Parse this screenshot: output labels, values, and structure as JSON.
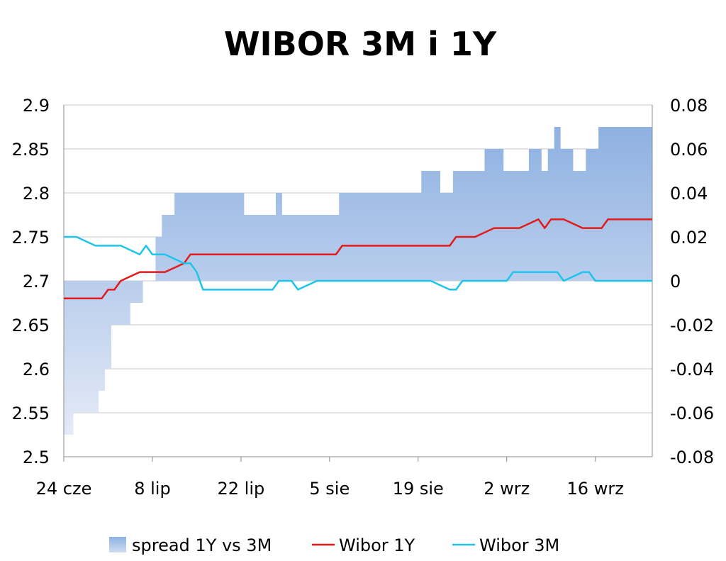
{
  "chart_data": {
    "type": "line",
    "title": "WIBOR 3M i 1Y",
    "x_tick_labels": [
      "24 cze",
      "8 lip",
      "22 lip",
      "5 sie",
      "19 sie",
      "2 wrz",
      "16 wrz"
    ],
    "x_range": [
      "2009-06-24",
      "2009-09-25"
    ],
    "y_left": {
      "ylim": [
        2.5,
        2.9
      ],
      "ticks": [
        "2.5",
        "2.55",
        "2.6",
        "2.65",
        "2.7",
        "2.75",
        "2.8",
        "2.85",
        "2.9"
      ]
    },
    "y_right": {
      "ylim": [
        -0.08,
        0.08
      ],
      "ticks": [
        "-0.08",
        "-0.06",
        "-0.04",
        "-0.02",
        "0",
        "0.02",
        "0.04",
        "0.06",
        "0.08"
      ]
    },
    "grid": true,
    "legend_position": "bottom",
    "x": [
      "2009-06-24",
      "2009-06-25",
      "2009-06-26",
      "2009-06-29",
      "2009-06-30",
      "2009-07-01",
      "2009-07-02",
      "2009-07-03",
      "2009-07-06",
      "2009-07-07",
      "2009-07-08",
      "2009-07-09",
      "2009-07-10",
      "2009-07-13",
      "2009-07-14",
      "2009-07-15",
      "2009-07-16",
      "2009-07-17",
      "2009-07-20",
      "2009-07-21",
      "2009-07-22",
      "2009-07-23",
      "2009-07-24",
      "2009-07-27",
      "2009-07-28",
      "2009-07-29",
      "2009-07-30",
      "2009-07-31",
      "2009-08-03",
      "2009-08-04",
      "2009-08-05",
      "2009-08-06",
      "2009-08-07",
      "2009-08-10",
      "2009-08-11",
      "2009-08-12",
      "2009-08-13",
      "2009-08-14",
      "2009-08-17",
      "2009-08-18",
      "2009-08-19",
      "2009-08-20",
      "2009-08-21",
      "2009-08-24",
      "2009-08-25",
      "2009-08-26",
      "2009-08-27",
      "2009-08-28",
      "2009-08-31",
      "2009-09-01",
      "2009-09-02",
      "2009-09-03",
      "2009-09-04",
      "2009-09-07",
      "2009-09-08",
      "2009-09-09",
      "2009-09-10",
      "2009-09-11",
      "2009-09-14",
      "2009-09-15",
      "2009-09-16",
      "2009-09-17",
      "2009-09-18",
      "2009-09-21",
      "2009-09-22",
      "2009-09-23",
      "2009-09-24",
      "2009-09-25"
    ],
    "series": [
      {
        "name": "spread 1Y vs 3M",
        "type": "area",
        "axis": "right",
        "color": "#8eb1e1",
        "values": [
          -0.07,
          -0.07,
          -0.06,
          -0.06,
          -0.05,
          -0.04,
          -0.02,
          -0.02,
          -0.01,
          0.0,
          0.0,
          0.02,
          0.03,
          0.04,
          0.04,
          0.04,
          0.04,
          0.04,
          0.04,
          0.04,
          0.04,
          0.03,
          0.03,
          0.03,
          0.04,
          0.03,
          0.03,
          0.03,
          0.03,
          0.03,
          0.03,
          0.03,
          0.04,
          0.04,
          0.04,
          0.04,
          0.04,
          0.04,
          0.04,
          0.04,
          0.04,
          0.05,
          0.05,
          0.04,
          0.05,
          0.05,
          0.05,
          0.05,
          0.06,
          0.06,
          0.05,
          0.05,
          0.05,
          0.06,
          0.05,
          0.06,
          0.07,
          0.06,
          0.05,
          0.06,
          0.06,
          0.07,
          0.07,
          0.07,
          0.07,
          0.07,
          0.07,
          0.07
        ]
      },
      {
        "name": "Wibor 1Y",
        "type": "line",
        "axis": "left",
        "color": "#e31a1c",
        "values": [
          2.68,
          2.68,
          2.68,
          2.68,
          2.68,
          2.69,
          2.69,
          2.7,
          2.71,
          2.71,
          2.71,
          2.71,
          2.71,
          2.72,
          2.73,
          2.73,
          2.73,
          2.73,
          2.73,
          2.73,
          2.73,
          2.73,
          2.73,
          2.73,
          2.73,
          2.73,
          2.73,
          2.73,
          2.73,
          2.73,
          2.73,
          2.73,
          2.74,
          2.74,
          2.74,
          2.74,
          2.74,
          2.74,
          2.74,
          2.74,
          2.74,
          2.74,
          2.74,
          2.74,
          2.75,
          2.75,
          2.75,
          2.75,
          2.76,
          2.76,
          2.76,
          2.76,
          2.76,
          2.77,
          2.76,
          2.77,
          2.77,
          2.77,
          2.76,
          2.76,
          2.76,
          2.76,
          2.77,
          2.77,
          2.77,
          2.77,
          2.77,
          2.77
        ]
      },
      {
        "name": "Wibor 3M",
        "type": "line",
        "axis": "left",
        "color": "#1ec4ea",
        "values": [
          2.75,
          2.75,
          2.75,
          2.74,
          2.74,
          2.74,
          2.74,
          2.74,
          2.73,
          2.74,
          2.73,
          2.73,
          2.73,
          2.72,
          2.72,
          2.71,
          2.69,
          2.69,
          2.69,
          2.69,
          2.69,
          2.69,
          2.69,
          2.69,
          2.7,
          2.7,
          2.7,
          2.69,
          2.7,
          2.7,
          2.7,
          2.7,
          2.7,
          2.7,
          2.7,
          2.7,
          2.7,
          2.7,
          2.7,
          2.7,
          2.7,
          2.7,
          2.7,
          2.69,
          2.69,
          2.7,
          2.7,
          2.7,
          2.7,
          2.7,
          2.7,
          2.71,
          2.71,
          2.71,
          2.71,
          2.71,
          2.71,
          2.7,
          2.71,
          2.71,
          2.7,
          2.7,
          2.7,
          2.7,
          2.7,
          2.7,
          2.7,
          2.7
        ]
      }
    ]
  }
}
